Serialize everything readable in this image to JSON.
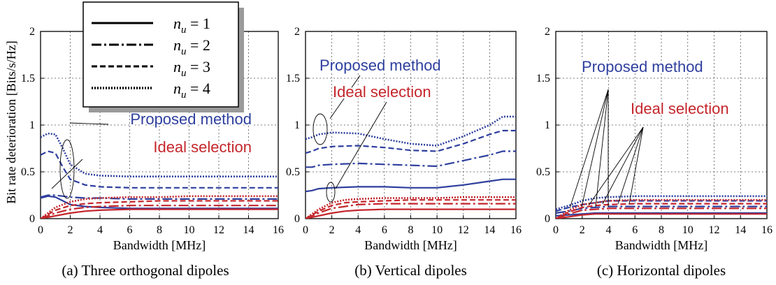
{
  "shared": {
    "ylabel": "Bit rate deterioration [Bits/s/Hz]",
    "xlabel": "Bandwidth [MHz]",
    "x_ticks": [
      "0",
      "2",
      "4",
      "6",
      "8",
      "10",
      "12",
      "14",
      "16"
    ],
    "y_ticks": [
      "0",
      "0.5",
      "1",
      "1.5",
      "2"
    ],
    "colors": {
      "proposed": "#2e3f9e",
      "ideal": "#c4262c"
    },
    "legend": [
      {
        "label": "n_u = 1",
        "dash": "solid"
      },
      {
        "label": "n_u = 2",
        "dash": "dashdot"
      },
      {
        "label": "n_u = 3",
        "dash": "dashed"
      },
      {
        "label": "n_u = 4",
        "dash": "dotted"
      }
    ]
  },
  "chart_data": [
    {
      "type": "line",
      "caption": "(a) Three orthogonal dipoles",
      "xlabel": "Bandwidth [MHz]",
      "ylabel": "Bit rate deterioration [Bits/s/Hz]",
      "xlim": [
        0,
        16
      ],
      "ylim": [
        0,
        2
      ],
      "grid": true,
      "annotations": [
        "Proposed method",
        "Ideal selection"
      ],
      "series": [
        {
          "name": "Proposed method, n_u = 1",
          "group": "proposed",
          "dash": "solid",
          "x": [
            0,
            0.5,
            1,
            1.5,
            2,
            3,
            4,
            6,
            8,
            10,
            12,
            14,
            16
          ],
          "y": [
            0.22,
            0.24,
            0.23,
            0.19,
            0.15,
            0.13,
            0.12,
            0.11,
            0.11,
            0.11,
            0.11,
            0.11,
            0.11
          ]
        },
        {
          "name": "Proposed method, n_u = 2",
          "group": "proposed",
          "dash": "dashdot",
          "x": [
            0,
            0.5,
            1,
            1.5,
            2,
            3,
            4,
            6,
            8,
            10,
            12,
            14,
            16
          ],
          "y": [
            0.23,
            0.25,
            0.25,
            0.24,
            0.23,
            0.22,
            0.22,
            0.21,
            0.21,
            0.21,
            0.21,
            0.21,
            0.21
          ]
        },
        {
          "name": "Proposed method, n_u = 3",
          "group": "proposed",
          "dash": "dashed",
          "x": [
            0,
            0.5,
            1,
            1.5,
            2,
            3,
            4,
            6,
            8,
            10,
            12,
            14,
            16
          ],
          "y": [
            0.68,
            0.72,
            0.7,
            0.55,
            0.42,
            0.36,
            0.34,
            0.33,
            0.33,
            0.33,
            0.33,
            0.33,
            0.33
          ]
        },
        {
          "name": "Proposed method, n_u = 4",
          "group": "proposed",
          "dash": "dotted",
          "x": [
            0,
            0.5,
            1,
            1.5,
            2,
            3,
            4,
            6,
            8,
            10,
            12,
            14,
            16
          ],
          "y": [
            0.87,
            0.91,
            0.9,
            0.75,
            0.58,
            0.48,
            0.46,
            0.45,
            0.45,
            0.45,
            0.45,
            0.45,
            0.45
          ]
        },
        {
          "name": "Ideal selection, n_u = 1",
          "group": "ideal",
          "dash": "solid",
          "x": [
            0,
            1,
            2,
            3,
            4,
            6,
            8,
            10,
            12,
            14,
            16
          ],
          "y": [
            0.0,
            0.03,
            0.06,
            0.08,
            0.09,
            0.1,
            0.1,
            0.1,
            0.1,
            0.1,
            0.1
          ]
        },
        {
          "name": "Ideal selection, n_u = 2",
          "group": "ideal",
          "dash": "dashdot",
          "x": [
            0,
            1,
            2,
            3,
            4,
            6,
            8,
            10,
            12,
            14,
            16
          ],
          "y": [
            0.0,
            0.06,
            0.1,
            0.12,
            0.13,
            0.14,
            0.14,
            0.14,
            0.14,
            0.14,
            0.14
          ]
        },
        {
          "name": "Ideal selection, n_u = 3",
          "group": "ideal",
          "dash": "dashed",
          "x": [
            0,
            1,
            2,
            3,
            4,
            6,
            8,
            10,
            12,
            14,
            16
          ],
          "y": [
            0.0,
            0.09,
            0.14,
            0.16,
            0.17,
            0.18,
            0.19,
            0.19,
            0.19,
            0.19,
            0.19
          ]
        },
        {
          "name": "Ideal selection, n_u = 4",
          "group": "ideal",
          "dash": "dotted",
          "x": [
            0,
            1,
            2,
            3,
            4,
            6,
            8,
            10,
            12,
            14,
            16
          ],
          "y": [
            0.0,
            0.12,
            0.18,
            0.21,
            0.22,
            0.23,
            0.23,
            0.24,
            0.24,
            0.24,
            0.24
          ]
        }
      ]
    },
    {
      "type": "line",
      "caption": "(b) Vertical dipoles",
      "xlabel": "Bandwidth [MHz]",
      "ylabel": "",
      "xlim": [
        0,
        16
      ],
      "ylim": [
        0,
        2
      ],
      "grid": true,
      "annotations": [
        "Proposed method",
        "Ideal selection"
      ],
      "series": [
        {
          "name": "Proposed method, n_u = 1",
          "group": "proposed",
          "dash": "solid",
          "x": [
            0,
            0.5,
            1,
            2,
            4,
            6,
            8,
            10,
            12,
            14,
            15,
            16
          ],
          "y": [
            0.29,
            0.3,
            0.32,
            0.33,
            0.34,
            0.34,
            0.33,
            0.33,
            0.36,
            0.4,
            0.42,
            0.42
          ]
        },
        {
          "name": "Proposed method, n_u = 2",
          "group": "proposed",
          "dash": "dashdot",
          "x": [
            0,
            0.5,
            1,
            2,
            4,
            6,
            8,
            10,
            12,
            14,
            15,
            16
          ],
          "y": [
            0.55,
            0.55,
            0.57,
            0.58,
            0.59,
            0.58,
            0.57,
            0.56,
            0.62,
            0.68,
            0.72,
            0.72
          ]
        },
        {
          "name": "Proposed method, n_u = 3",
          "group": "proposed",
          "dash": "dashed",
          "x": [
            0,
            0.5,
            1,
            2,
            4,
            6,
            8,
            10,
            12,
            14,
            15,
            16
          ],
          "y": [
            0.7,
            0.72,
            0.75,
            0.77,
            0.78,
            0.76,
            0.73,
            0.72,
            0.8,
            0.9,
            0.94,
            0.94
          ]
        },
        {
          "name": "Proposed method, n_u = 4",
          "group": "proposed",
          "dash": "dotted",
          "x": [
            0,
            0.5,
            1,
            2,
            4,
            6,
            8,
            10,
            12,
            14,
            15,
            16
          ],
          "y": [
            0.85,
            0.87,
            0.9,
            0.92,
            0.91,
            0.85,
            0.8,
            0.78,
            0.88,
            1.0,
            1.09,
            1.09
          ]
        },
        {
          "name": "Ideal selection, n_u = 1",
          "group": "ideal",
          "dash": "solid",
          "x": [
            0,
            1,
            2,
            3,
            4,
            6,
            8,
            10,
            12,
            14,
            16
          ],
          "y": [
            0.0,
            0.03,
            0.06,
            0.08,
            0.09,
            0.1,
            0.1,
            0.1,
            0.1,
            0.1,
            0.1
          ]
        },
        {
          "name": "Ideal selection, n_u = 2",
          "group": "ideal",
          "dash": "dashdot",
          "x": [
            0,
            1,
            2,
            3,
            4,
            6,
            8,
            10,
            12,
            14,
            16
          ],
          "y": [
            0.0,
            0.06,
            0.11,
            0.13,
            0.15,
            0.16,
            0.16,
            0.16,
            0.16,
            0.16,
            0.16
          ]
        },
        {
          "name": "Ideal selection, n_u = 3",
          "group": "ideal",
          "dash": "dashed",
          "x": [
            0,
            1,
            2,
            3,
            4,
            6,
            8,
            10,
            12,
            14,
            16
          ],
          "y": [
            0.0,
            0.08,
            0.14,
            0.17,
            0.18,
            0.19,
            0.2,
            0.2,
            0.2,
            0.2,
            0.2
          ]
        },
        {
          "name": "Ideal selection, n_u = 4",
          "group": "ideal",
          "dash": "dotted",
          "x": [
            0,
            1,
            2,
            3,
            4,
            6,
            8,
            10,
            12,
            14,
            16
          ],
          "y": [
            0.0,
            0.1,
            0.17,
            0.2,
            0.21,
            0.22,
            0.22,
            0.22,
            0.23,
            0.23,
            0.23
          ]
        }
      ]
    },
    {
      "type": "line",
      "caption": "(c) Horizontal dipoles",
      "xlabel": "Bandwidth [MHz]",
      "ylabel": "",
      "xlim": [
        0,
        16
      ],
      "ylim": [
        0,
        2
      ],
      "grid": true,
      "annotations": [
        "Proposed method",
        "Ideal selection"
      ],
      "series": [
        {
          "name": "Proposed method, n_u = 1",
          "group": "proposed",
          "dash": "solid",
          "x": [
            0,
            1,
            2,
            3,
            4,
            6,
            8,
            10,
            12,
            14,
            16
          ],
          "y": [
            0.03,
            0.04,
            0.05,
            0.06,
            0.06,
            0.06,
            0.06,
            0.06,
            0.06,
            0.06,
            0.06
          ]
        },
        {
          "name": "Proposed method, n_u = 2",
          "group": "proposed",
          "dash": "dashdot",
          "x": [
            0,
            1,
            2,
            3,
            4,
            6,
            8,
            10,
            12,
            14,
            16
          ],
          "y": [
            0.06,
            0.08,
            0.11,
            0.12,
            0.13,
            0.13,
            0.13,
            0.13,
            0.13,
            0.13,
            0.13
          ]
        },
        {
          "name": "Proposed method, n_u = 3",
          "group": "proposed",
          "dash": "dashed",
          "x": [
            0,
            1,
            2,
            3,
            4,
            6,
            8,
            10,
            12,
            14,
            16
          ],
          "y": [
            0.08,
            0.12,
            0.15,
            0.17,
            0.19,
            0.19,
            0.19,
            0.19,
            0.19,
            0.19,
            0.19
          ]
        },
        {
          "name": "Proposed method, n_u = 4",
          "group": "proposed",
          "dash": "dotted",
          "x": [
            0,
            1,
            2,
            3,
            4,
            6,
            8,
            10,
            12,
            14,
            16
          ],
          "y": [
            0.1,
            0.14,
            0.19,
            0.22,
            0.23,
            0.24,
            0.24,
            0.24,
            0.24,
            0.24,
            0.24
          ]
        },
        {
          "name": "Ideal selection, n_u = 1",
          "group": "ideal",
          "dash": "solid",
          "x": [
            0,
            1,
            2,
            3,
            4,
            6,
            8,
            10,
            12,
            14,
            16
          ],
          "y": [
            0.0,
            0.02,
            0.04,
            0.05,
            0.05,
            0.05,
            0.05,
            0.05,
            0.05,
            0.05,
            0.05
          ]
        },
        {
          "name": "Ideal selection, n_u = 2",
          "group": "ideal",
          "dash": "dashdot",
          "x": [
            0,
            1,
            2,
            3,
            4,
            6,
            8,
            10,
            12,
            14,
            16
          ],
          "y": [
            0.0,
            0.05,
            0.09,
            0.1,
            0.11,
            0.11,
            0.11,
            0.11,
            0.11,
            0.11,
            0.11
          ]
        },
        {
          "name": "Ideal selection, n_u = 3",
          "group": "ideal",
          "dash": "dashed",
          "x": [
            0,
            1,
            2,
            3,
            4,
            6,
            8,
            10,
            12,
            14,
            16
          ],
          "y": [
            0.0,
            0.07,
            0.12,
            0.14,
            0.15,
            0.16,
            0.16,
            0.16,
            0.16,
            0.16,
            0.16
          ]
        },
        {
          "name": "Ideal selection, n_u = 4",
          "group": "ideal",
          "dash": "dotted",
          "x": [
            0,
            1,
            2,
            3,
            4,
            6,
            8,
            10,
            12,
            14,
            16
          ],
          "y": [
            0.0,
            0.09,
            0.15,
            0.17,
            0.19,
            0.2,
            0.2,
            0.2,
            0.2,
            0.2,
            0.2
          ]
        }
      ]
    }
  ]
}
